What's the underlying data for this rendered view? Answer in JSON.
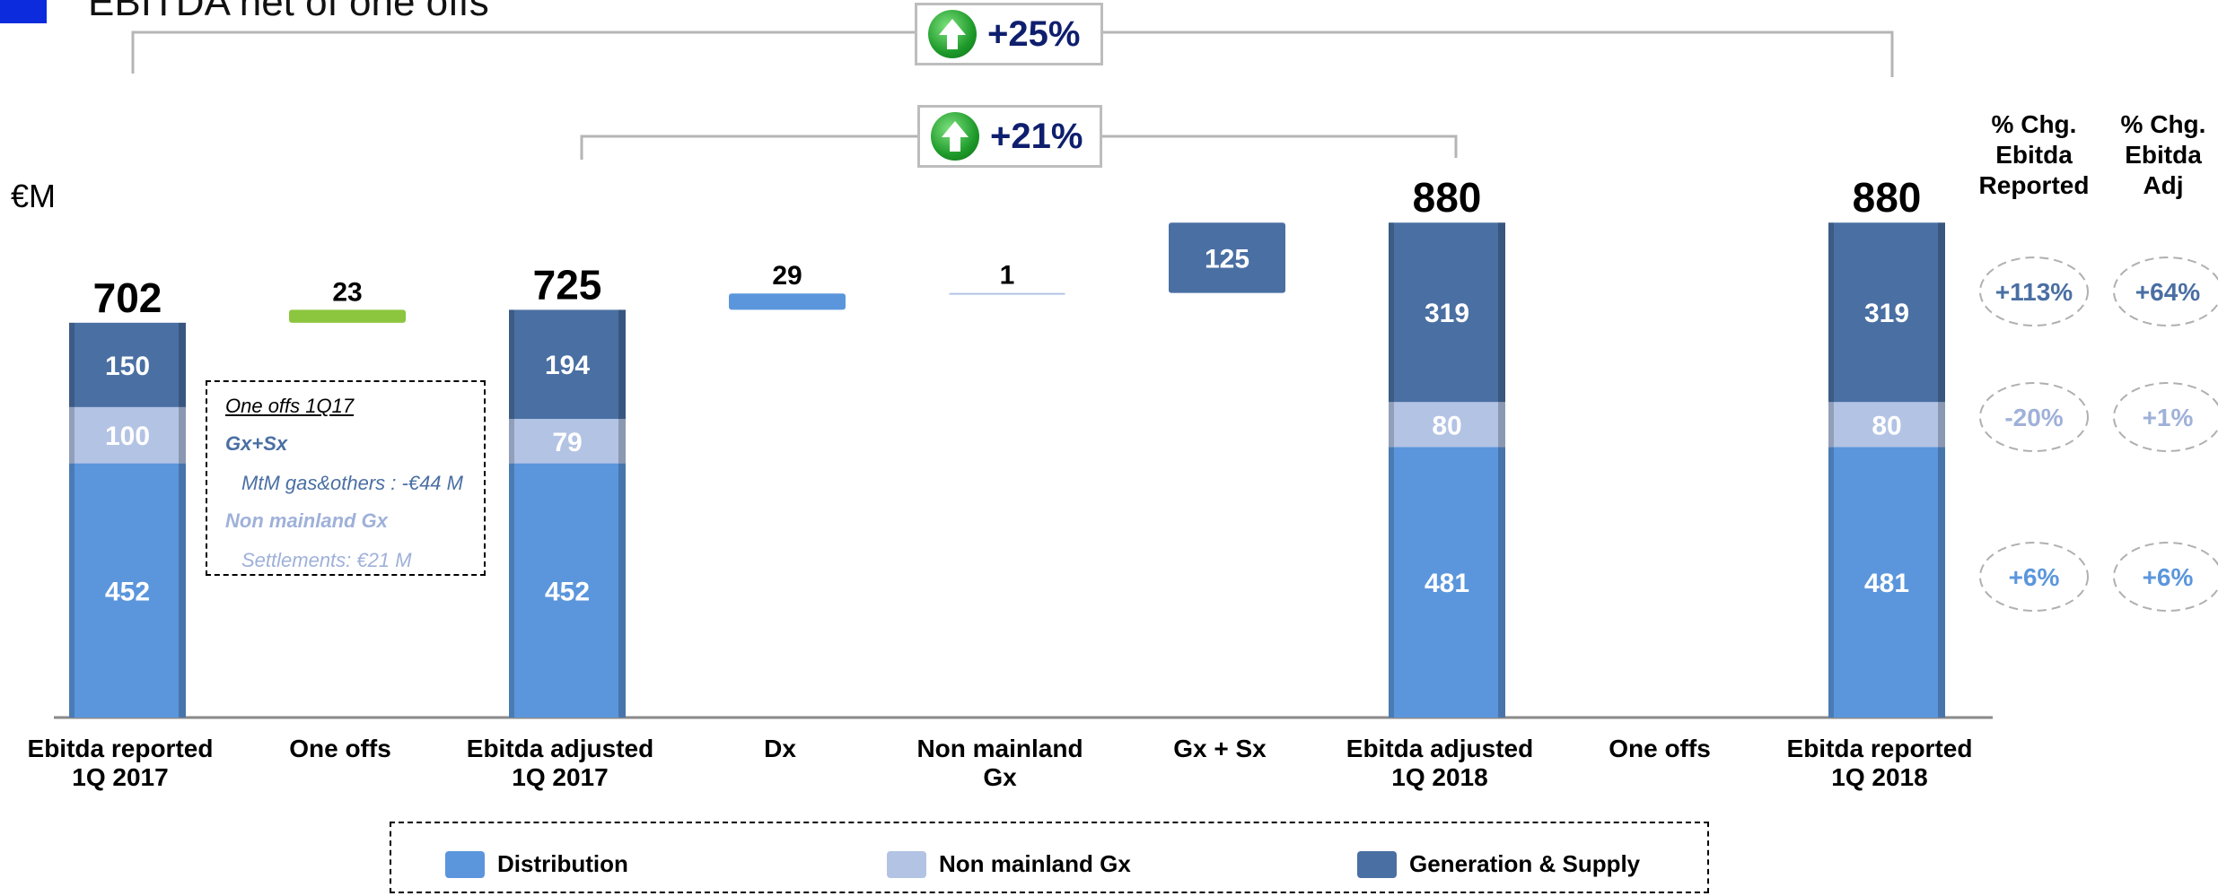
{
  "header": {
    "title_fragment": "EBITDA net of one offs",
    "unit": "€M"
  },
  "badges": {
    "outer": "+25%",
    "inner": "+21%"
  },
  "pct_headers": {
    "reported": [
      "% Chg.",
      "Ebitda",
      "Reported"
    ],
    "adjusted": [
      "% Chg.",
      "Ebitda",
      "Adj"
    ]
  },
  "pct_changes": {
    "generation_supply": {
      "reported": "+113%",
      "adjusted": "+64%"
    },
    "non_mainland": {
      "reported": "-20%",
      "adjusted": "+1%"
    },
    "distribution": {
      "reported": "+6%",
      "adjusted": "+6%"
    }
  },
  "one_offs_note": {
    "title": "One offs 1Q17",
    "gx_label": "Gx+Sx",
    "gx_detail": "MtM gas&others : -€44 M",
    "nm_label": "Non mainland Gx",
    "nm_detail": "Settlements: €21 M"
  },
  "legend": {
    "distribution": "Distribution",
    "non_mainland": "Non mainland Gx",
    "generation_supply": "Generation & Supply"
  },
  "colors": {
    "distribution": "#5b96dc",
    "non_mainland": "#b3c3e4",
    "generation_supply": "#4a6fa3",
    "one_offs": "#8cc63f",
    "accent_text": "#0f1f6e"
  },
  "chart_data": {
    "type": "bar",
    "subtype": "waterfall-stacked",
    "ylim": [
      0,
      900
    ],
    "categories": [
      "Ebitda reported\n1Q 2017",
      "One offs",
      "Ebitda adjusted\n1Q 2017",
      "Dx",
      "Non mainland\nGx",
      "Gx + Sx",
      "Ebitda adjusted\n1Q 2018",
      "One offs",
      "Ebitda reported\n1Q 2018"
    ],
    "bars": [
      {
        "kind": "stack",
        "total": 702,
        "segments": {
          "distribution": 452,
          "non_mainland": 100,
          "generation_supply": 150
        }
      },
      {
        "kind": "delta",
        "value": 23,
        "base": 702,
        "color": "one_offs"
      },
      {
        "kind": "stack",
        "total": 725,
        "segments": {
          "distribution": 452,
          "non_mainland": 79,
          "generation_supply": 194
        }
      },
      {
        "kind": "delta",
        "value": 29,
        "base": 725,
        "color": "distribution"
      },
      {
        "kind": "delta",
        "value": 1,
        "base": 754,
        "color": "non_mainland"
      },
      {
        "kind": "delta",
        "value": 125,
        "base": 755,
        "color": "generation_supply"
      },
      {
        "kind": "stack",
        "total": 880,
        "segments": {
          "distribution": 481,
          "non_mainland": 80,
          "generation_supply": 319
        }
      },
      {
        "kind": "empty"
      },
      {
        "kind": "stack",
        "total": 880,
        "segments": {
          "distribution": 481,
          "non_mainland": 80,
          "generation_supply": 319
        }
      }
    ]
  }
}
